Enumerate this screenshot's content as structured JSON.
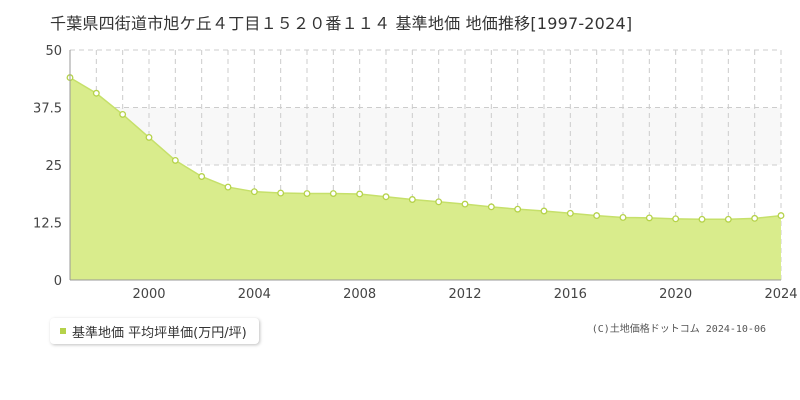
{
  "title": "千葉県四街道市旭ケ丘４丁目１５２０番１１４ 基準地価 地価推移[1997-2024]",
  "credit": "(C)土地価格ドットコム 2024-10-06",
  "colors": {
    "fill": "#d9ec8c",
    "line": "#c6e06a",
    "point": "#b5d24a",
    "grid": "#cccccc",
    "band": "#f8f8f8"
  },
  "chart_data": {
    "type": "area",
    "title": "千葉県四街道市旭ケ丘４丁目１５２０番１１４ 基準地価 地価推移[1997-2024]",
    "xlabel": "",
    "ylabel": "",
    "xlim": [
      1997,
      2024
    ],
    "ylim": [
      0,
      50
    ],
    "grid": true,
    "legend": "bottom-left",
    "y_ticks": [
      "0",
      "12.5",
      "25",
      "37.5",
      "50"
    ],
    "x_ticks": [
      "2000",
      "2004",
      "2008",
      "2012",
      "2016",
      "2020",
      "2024"
    ],
    "series": [
      {
        "name": "基準地価 平均坪単価(万円/坪)",
        "x": [
          1997,
          1998,
          1999,
          2000,
          2001,
          2002,
          2003,
          2004,
          2005,
          2006,
          2007,
          2008,
          2009,
          2010,
          2011,
          2012,
          2013,
          2014,
          2015,
          2016,
          2017,
          2018,
          2019,
          2020,
          2021,
          2022,
          2023,
          2024
        ],
        "values": [
          44.0,
          40.6,
          36.0,
          31.0,
          26.0,
          22.5,
          20.2,
          19.2,
          18.9,
          18.8,
          18.8,
          18.7,
          18.1,
          17.5,
          17.0,
          16.5,
          15.9,
          15.4,
          15.0,
          14.5,
          14.0,
          13.6,
          13.5,
          13.3,
          13.2,
          13.2,
          13.4,
          14.0
        ]
      }
    ]
  }
}
